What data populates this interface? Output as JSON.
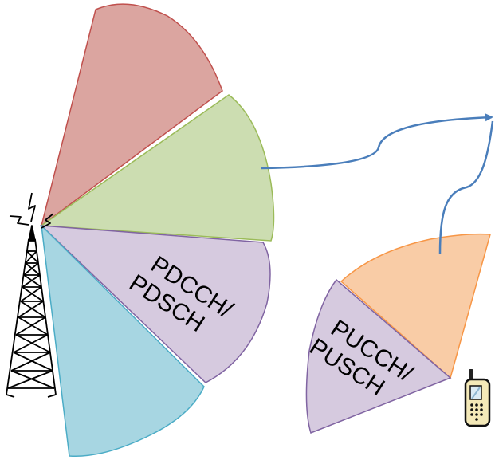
{
  "downlink": {
    "label_line1": "PDCCH/",
    "label_line2": "PDSCH",
    "colors": {
      "beam_red": "#dba5a0",
      "beam_green": "#ccddb1",
      "beam_purple": "#d6cadf",
      "beam_blue": "#a7d6e2"
    }
  },
  "uplink": {
    "label_line1": "PUCCH/",
    "label_line2": "PUSCH",
    "colors": {
      "beam_orange": "#f9cca6",
      "beam_purple": "#d6cadf"
    }
  },
  "arrow_color": "#4a7ebb",
  "icons": {
    "tower": "cell-tower-icon",
    "phone": "mobile-phone-icon"
  }
}
